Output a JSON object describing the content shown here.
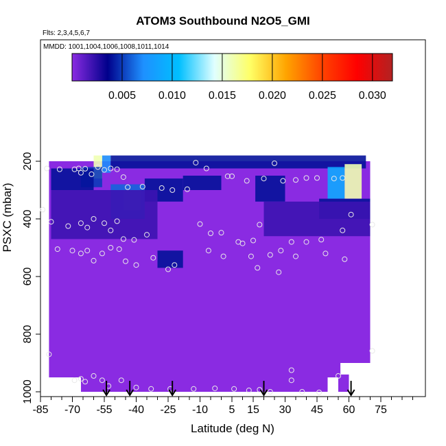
{
  "chart_data": {
    "type": "heatmap",
    "title": "ATOM3 Southbound N2O5_GMI",
    "annotations": {
      "flights": "Flts: 2,3,4,5,6,7",
      "dates": "MMDD: 1001,1004,1006,1008,1011,1014"
    },
    "xlabel": "Latitude (deg N)",
    "ylabel": "PSXC (mbar)",
    "xlim": [
      -85,
      90
    ],
    "ylim": [
      1000,
      0
    ],
    "x_ticks": [
      "-85",
      "-70",
      "-55",
      "-40",
      "-25",
      "-10",
      "5",
      "15",
      "30",
      "45",
      "60",
      "75"
    ],
    "x_tick_values": [
      -85,
      -70,
      -55,
      -40,
      -25,
      -10,
      5,
      15,
      30,
      45,
      60,
      75
    ],
    "y_ticks": [
      "200",
      "400",
      "600",
      "800",
      "1000"
    ],
    "y_tick_values": [
      200,
      400,
      600,
      800,
      1000
    ],
    "colorbar": {
      "range": [
        0,
        0.032
      ],
      "ticks": [
        "0.005",
        "0.010",
        "0.015",
        "0.020",
        "0.025",
        "0.030"
      ],
      "tick_values": [
        0.005,
        0.01,
        0.015,
        0.02,
        0.025,
        0.03
      ],
      "colors": [
        "#8a2be2",
        "#00008b",
        "#1e90ff",
        "#00bfff",
        "#e0ffff",
        "#ffff66",
        "#ffa500",
        "#ff4500",
        "#ff0000",
        "#b22222"
      ]
    },
    "background_color": "#8a2be2",
    "field_regions": [
      {
        "lat": [
          -60,
          -56
        ],
        "p": [
          180,
          260
        ],
        "value": 0.016
      },
      {
        "lat": [
          -56,
          -52
        ],
        "p": [
          180,
          240
        ],
        "value": 0.007
      },
      {
        "lat": [
          -66,
          -56
        ],
        "p": [
          220,
          290
        ],
        "value": 0.005
      },
      {
        "lat": [
          -52,
          68
        ],
        "p": [
          180,
          225
        ],
        "value": 0.004
      },
      {
        "lat": [
          -80,
          -60
        ],
        "p": [
          225,
          300
        ],
        "value": 0.004
      },
      {
        "lat": [
          -46,
          -38
        ],
        "p": [
          300,
          370
        ],
        "value": 0.018
      },
      {
        "lat": [
          -52,
          -36
        ],
        "p": [
          280,
          400
        ],
        "value": 0.006
      },
      {
        "lat": [
          -36,
          -18
        ],
        "p": [
          260,
          340
        ],
        "value": 0.004
      },
      {
        "lat": [
          -18,
          0
        ],
        "p": [
          250,
          300
        ],
        "value": 0.004
      },
      {
        "lat": [
          16,
          30
        ],
        "p": [
          250,
          340
        ],
        "value": 0.004
      },
      {
        "lat": [
          50,
          58
        ],
        "p": [
          220,
          330
        ],
        "value": 0.009
      },
      {
        "lat": [
          58,
          66
        ],
        "p": [
          210,
          330
        ],
        "value": 0.016
      },
      {
        "lat": [
          46,
          70
        ],
        "p": [
          330,
          400
        ],
        "value": 0.004
      },
      {
        "lat": [
          -30,
          -18
        ],
        "p": [
          510,
          570
        ],
        "value": 0.004
      },
      {
        "lat": [
          -80,
          -30
        ],
        "p": [
          300,
          470
        ],
        "value": 0.002
      },
      {
        "lat": [
          20,
          70
        ],
        "p": [
          340,
          460
        ],
        "value": 0.002
      }
    ],
    "points": [
      {
        "lat": -82,
        "p": 225
      },
      {
        "lat": -76,
        "p": 228
      },
      {
        "lat": -69,
        "p": 228
      },
      {
        "lat": -67,
        "p": 225
      },
      {
        "lat": -66,
        "p": 240
      },
      {
        "lat": -64,
        "p": 226
      },
      {
        "lat": -61,
        "p": 245
      },
      {
        "lat": -58,
        "p": 220
      },
      {
        "lat": -55,
        "p": 230
      },
      {
        "lat": -52,
        "p": 225
      },
      {
        "lat": -49,
        "p": 228
      },
      {
        "lat": -46,
        "p": 255
      },
      {
        "lat": -44,
        "p": 290
      },
      {
        "lat": -37,
        "p": 288
      },
      {
        "lat": -28,
        "p": 293
      },
      {
        "lat": -23,
        "p": 300
      },
      {
        "lat": -16,
        "p": 297
      },
      {
        "lat": -12,
        "p": 205
      },
      {
        "lat": -7,
        "p": 225
      },
      {
        "lat": 3,
        "p": 252
      },
      {
        "lat": 5,
        "p": 252
      },
      {
        "lat": 12,
        "p": 268
      },
      {
        "lat": 20,
        "p": 260
      },
      {
        "lat": 25,
        "p": 207
      },
      {
        "lat": 29,
        "p": 268
      },
      {
        "lat": 35,
        "p": 265
      },
      {
        "lat": 40,
        "p": 258
      },
      {
        "lat": 45,
        "p": 258
      },
      {
        "lat": 53,
        "p": 260
      },
      {
        "lat": 57,
        "p": 258
      },
      {
        "lat": 61,
        "p": 385
      },
      {
        "lat": 71,
        "p": 420
      },
      {
        "lat": -84,
        "p": 368
      },
      {
        "lat": -80,
        "p": 410
      },
      {
        "lat": -72,
        "p": 425
      },
      {
        "lat": -66,
        "p": 415
      },
      {
        "lat": -63,
        "p": 430
      },
      {
        "lat": -60,
        "p": 400
      },
      {
        "lat": -55,
        "p": 415
      },
      {
        "lat": -52,
        "p": 440
      },
      {
        "lat": -49,
        "p": 408
      },
      {
        "lat": -46,
        "p": 470
      },
      {
        "lat": -41,
        "p": 473
      },
      {
        "lat": -35,
        "p": 455
      },
      {
        "lat": -10,
        "p": 418
      },
      {
        "lat": -5,
        "p": 450
      },
      {
        "lat": 0,
        "p": 448
      },
      {
        "lat": 8,
        "p": 480
      },
      {
        "lat": 15,
        "p": 475
      },
      {
        "lat": 18,
        "p": 420
      },
      {
        "lat": 23,
        "p": 525
      },
      {
        "lat": 28,
        "p": 510
      },
      {
        "lat": 33,
        "p": 480
      },
      {
        "lat": 40,
        "p": 480
      },
      {
        "lat": 47,
        "p": 472
      },
      {
        "lat": 57,
        "p": 440
      },
      {
        "lat": -77,
        "p": 505
      },
      {
        "lat": -70,
        "p": 510
      },
      {
        "lat": -66,
        "p": 520
      },
      {
        "lat": -63,
        "p": 510
      },
      {
        "lat": -60,
        "p": 545
      },
      {
        "lat": -56,
        "p": 520
      },
      {
        "lat": -52,
        "p": 500
      },
      {
        "lat": -48,
        "p": 505
      },
      {
        "lat": -45,
        "p": 547
      },
      {
        "lat": -40,
        "p": 560
      },
      {
        "lat": -32,
        "p": 535
      },
      {
        "lat": -25,
        "p": 575
      },
      {
        "lat": -22,
        "p": 560
      },
      {
        "lat": -6,
        "p": 510
      },
      {
        "lat": 1,
        "p": 530
      },
      {
        "lat": 10,
        "p": 485
      },
      {
        "lat": 14,
        "p": 530
      },
      {
        "lat": 17,
        "p": 570
      },
      {
        "lat": 27,
        "p": 585
      },
      {
        "lat": 35,
        "p": 530
      },
      {
        "lat": 49,
        "p": 520
      },
      {
        "lat": 58,
        "p": 540
      },
      {
        "lat": -69,
        "p": 960
      },
      {
        "lat": -66,
        "p": 955
      },
      {
        "lat": -64,
        "p": 965
      },
      {
        "lat": -60,
        "p": 945
      },
      {
        "lat": -56,
        "p": 960
      },
      {
        "lat": -53,
        "p": 980
      },
      {
        "lat": -47,
        "p": 960
      },
      {
        "lat": -40,
        "p": 985
      },
      {
        "lat": -33,
        "p": 990
      },
      {
        "lat": -24,
        "p": 990
      },
      {
        "lat": -13,
        "p": 990
      },
      {
        "lat": -3,
        "p": 988
      },
      {
        "lat": 6,
        "p": 990
      },
      {
        "lat": 13,
        "p": 995
      },
      {
        "lat": 18,
        "p": 993
      },
      {
        "lat": 23,
        "p": 1000
      },
      {
        "lat": 33,
        "p": 960
      },
      {
        "lat": 38,
        "p": 1000
      },
      {
        "lat": 46,
        "p": 1002
      },
      {
        "lat": 55,
        "p": 945
      },
      {
        "lat": -81,
        "p": 870
      },
      {
        "lat": 71,
        "p": 858
      },
      {
        "lat": 33,
        "p": 925
      }
    ],
    "arrows_lat": [
      -54,
      -43,
      -23,
      20,
      61
    ]
  }
}
